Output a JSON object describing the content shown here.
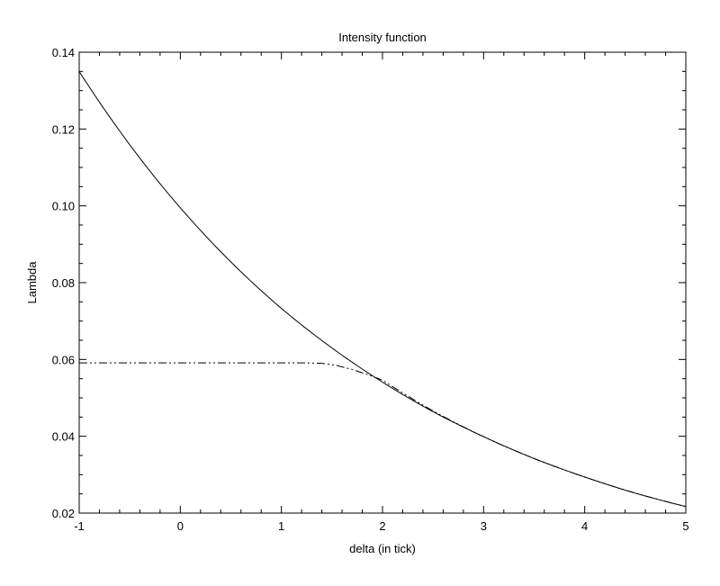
{
  "chart_data": {
    "type": "line",
    "title": "Intensity function",
    "xlabel": "delta (in tick)",
    "ylabel": "Lambda",
    "xlim": [
      -1,
      5
    ],
    "ylim": [
      0.02,
      0.14
    ],
    "x_ticks": [
      -1,
      0,
      1,
      2,
      3,
      4,
      5
    ],
    "x_tick_labels": [
      "-1",
      "0",
      "1",
      "2",
      "3",
      "4",
      "5"
    ],
    "y_ticks": [
      0.02,
      0.04,
      0.06,
      0.08,
      0.1,
      0.12,
      0.14
    ],
    "y_tick_labels": [
      "0.02",
      "0.04",
      "0.06",
      "0.08",
      "0.10",
      "0.12",
      "0.14"
    ],
    "grid": false,
    "legend": "none",
    "series": [
      {
        "style": "solid",
        "color": "#000000",
        "x": [
          -1,
          -0.5,
          0,
          0.5,
          1,
          1.5,
          2,
          2.5,
          3,
          3.5,
          4,
          4.5,
          5
        ],
        "y": [
          0.135,
          0.1159,
          0.0995,
          0.0854,
          0.0733,
          0.063,
          0.0541,
          0.0464,
          0.0399,
          0.0342,
          0.0294,
          0.0252,
          0.0217
        ]
      },
      {
        "style": "dash-dot-dot",
        "color": "#000000",
        "x": [
          -1,
          -0.5,
          0,
          0.5,
          1,
          1.25,
          1.4,
          1.55,
          1.7,
          1.85,
          2,
          2.25,
          2.5,
          3,
          3.5,
          4,
          4.5,
          5
        ],
        "y": [
          0.0591,
          0.0591,
          0.0591,
          0.0591,
          0.0591,
          0.0591,
          0.059,
          0.0584,
          0.0574,
          0.0561,
          0.0546,
          0.0505,
          0.0466,
          0.0399,
          0.0342,
          0.0294,
          0.0252,
          0.0217
        ]
      }
    ]
  }
}
